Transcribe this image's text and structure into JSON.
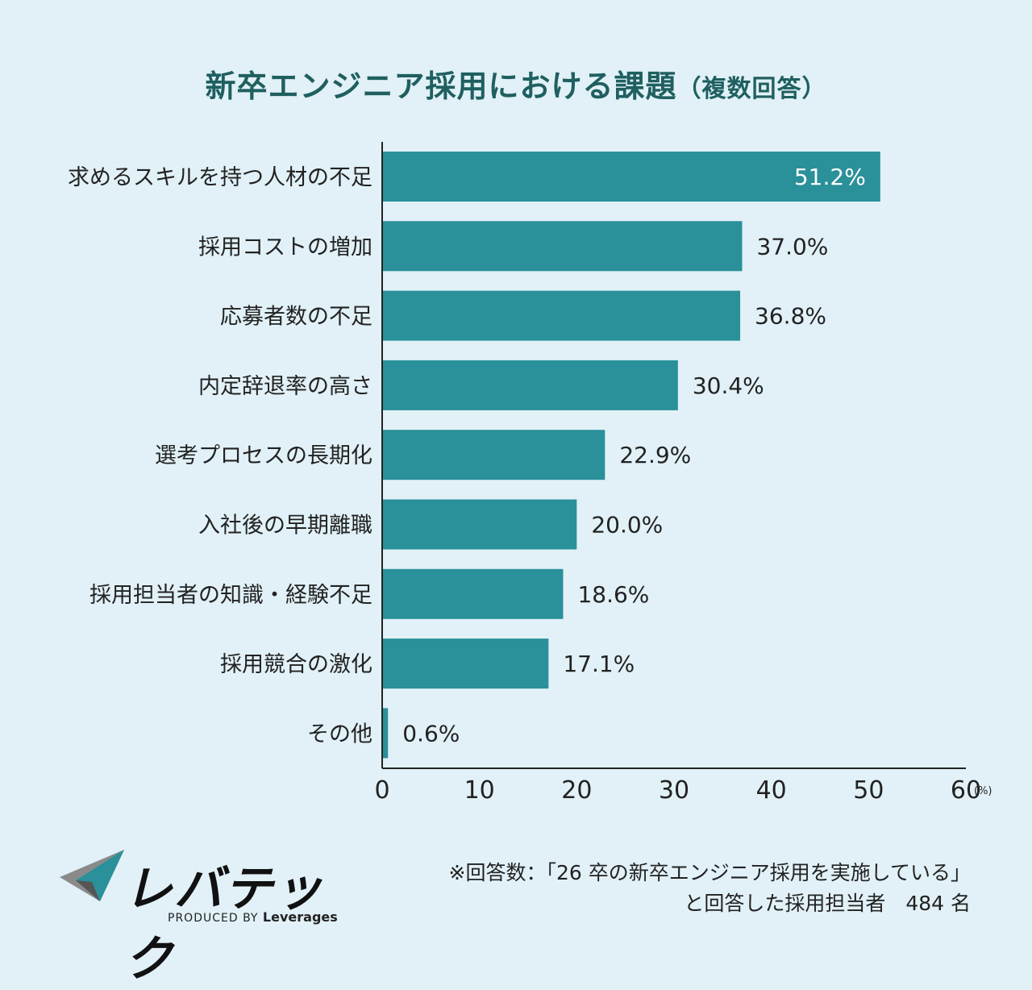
{
  "title": "新卒エンジニア採用における課題",
  "subtitle": "（複数回答）",
  "chart_data": {
    "type": "bar",
    "orientation": "horizontal",
    "categories": [
      "求めるスキルを持つ人材の不足",
      "採用コストの増加",
      "応募者数の不足",
      "内定辞退率の高さ",
      "選考プロセスの長期化",
      "入社後の早期離職",
      "採用担当者の知識・経験不足",
      "採用競合の激化",
      "その他"
    ],
    "values": [
      51.2,
      37.0,
      36.8,
      30.4,
      22.9,
      20.0,
      18.6,
      17.1,
      0.6
    ],
    "value_labels": [
      "51.2%",
      "37.0%",
      "36.8%",
      "30.4%",
      "22.9%",
      "20.0%",
      "18.6%",
      "17.1%",
      "0.6%"
    ],
    "xlim": [
      0,
      60
    ],
    "xticks": [
      0,
      10,
      20,
      30,
      40,
      50,
      60
    ],
    "xunit": "(%)",
    "bar_color": "#2a9099",
    "grid": false
  },
  "logo": {
    "name": "レバテック",
    "tagline": "PRODUCED BY",
    "brand": "Leverages",
    "icon": "paper-plane-logo-icon"
  },
  "note": {
    "line1": "※回答数：「26 卒の新卒エンジニア採用を実施している」",
    "line2": "と回答した採用担当者　484 名"
  }
}
